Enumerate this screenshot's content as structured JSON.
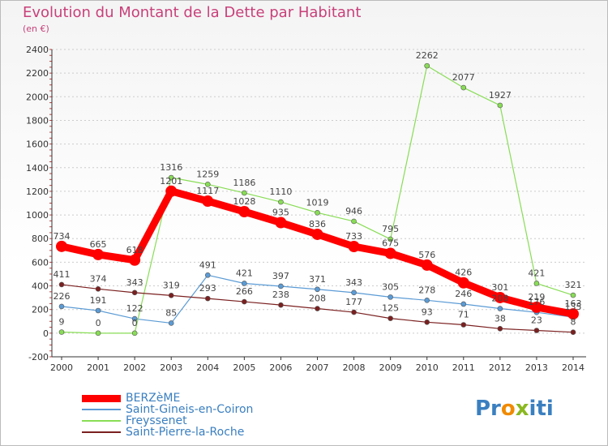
{
  "title": "Evolution du Montant de la Dette par Habitant",
  "unit": "(en €)",
  "logo": {
    "text": "Proxiti",
    "name": "proxiti-logo"
  },
  "colors": {
    "title": "#c8407a",
    "axis": "#333333",
    "label": "#444444",
    "grid": "#cccccc"
  },
  "chart_data": {
    "type": "line",
    "x": [
      "2000",
      "2001",
      "2002",
      "2003",
      "2004",
      "2005",
      "2006",
      "2007",
      "2008",
      "2009",
      "2010",
      "2011",
      "2012",
      "2013",
      "2014"
    ],
    "ylim": [
      -200,
      2400
    ],
    "yticks": [
      -200,
      0,
      200,
      400,
      600,
      800,
      1000,
      1200,
      1400,
      1600,
      1800,
      2000,
      2200,
      2400
    ],
    "grid": true,
    "legend_position": "bottom-left",
    "series": [
      {
        "name": "BERZèME",
        "color": "#ff0000",
        "width": 9,
        "marker": 7,
        "values": [
          734,
          665,
          618,
          1201,
          1117,
          1028,
          935,
          836,
          733,
          675,
          576,
          426,
          301,
          219,
          163
        ]
      },
      {
        "name": "Saint-Gineis-en-Coiron",
        "color": "#5b9bd5",
        "width": 1.2,
        "marker": 3,
        "values": [
          226,
          191,
          122,
          85,
          491,
          421,
          397,
          371,
          343,
          305,
          278,
          246,
          208,
          176,
          135
        ]
      },
      {
        "name": "Freyssenet",
        "color": "#88dd55",
        "width": 1.2,
        "marker": 3,
        "values": [
          9,
          0,
          0,
          1316,
          1259,
          1186,
          1110,
          1019,
          946,
          795,
          2262,
          2077,
          1927,
          421,
          321
        ]
      },
      {
        "name": "Saint-Pierre-la-Roche",
        "color": "#7b2020",
        "width": 1.2,
        "marker": 3,
        "values": [
          411,
          374,
          343,
          319,
          293,
          266,
          238,
          208,
          177,
          125,
          93,
          71,
          38,
          23,
          8
        ]
      }
    ]
  }
}
